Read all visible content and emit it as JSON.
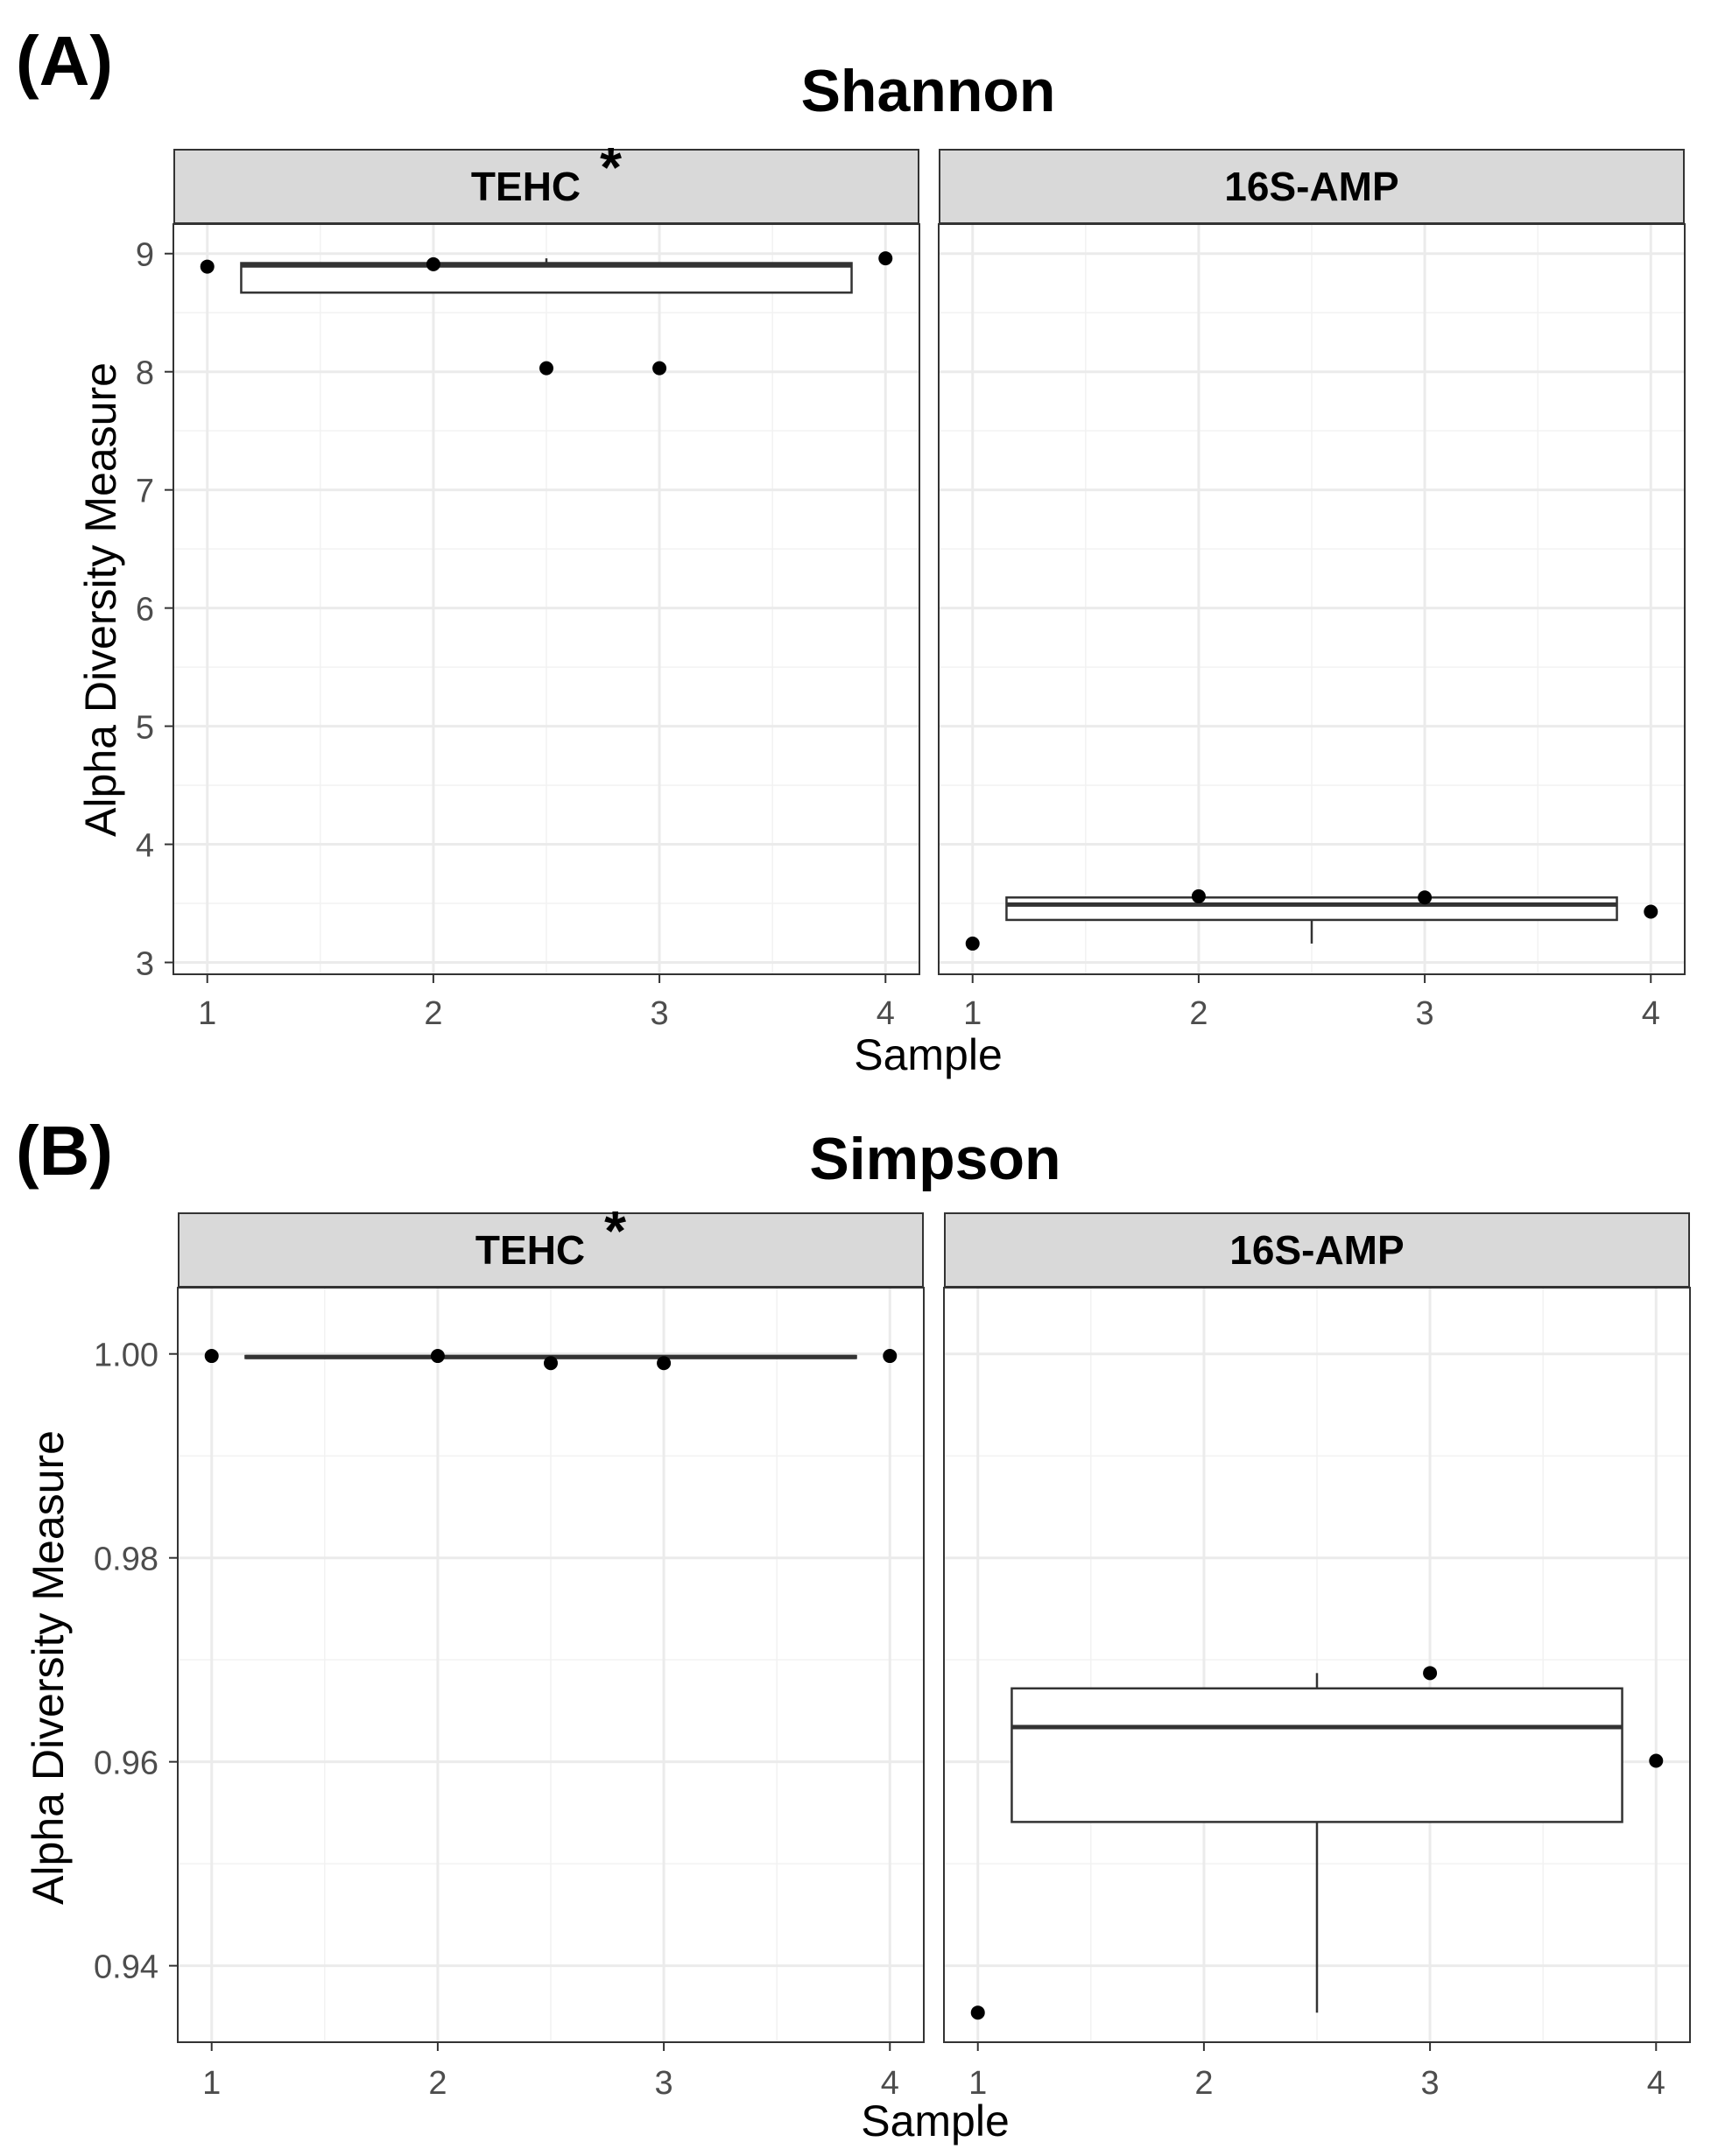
{
  "figure": {
    "panel_labels": [
      "(A)",
      "(B)"
    ]
  },
  "chart_data": [
    {
      "type": "box",
      "panel_label": "(A)",
      "title": "Shannon",
      "xlabel": "Sample",
      "ylabel": "Alpha Diversity Measure",
      "ylim": [
        2.9,
        9.25
      ],
      "yticks": [
        3,
        4,
        5,
        6,
        7,
        8,
        9
      ],
      "ytick_labels": [
        "3",
        "4",
        "5",
        "6",
        "7",
        "8",
        "9"
      ],
      "xlim": [
        0.85,
        4.15
      ],
      "xticks": [
        1,
        2,
        3,
        4
      ],
      "xtick_labels": [
        "1",
        "2",
        "3",
        "4"
      ],
      "grid": true,
      "facets": [
        {
          "label": "TEHC",
          "star": "*",
          "points": [
            {
              "x": 1,
              "y": 8.89
            },
            {
              "x": 2,
              "y": 8.91
            },
            {
              "x": 2.5,
              "y": 8.03
            },
            {
              "x": 3,
              "y": 8.03
            },
            {
              "x": 4,
              "y": 8.96
            }
          ],
          "box": {
            "x": 2.5,
            "q1": 8.67,
            "median": 8.9,
            "q3": 8.92,
            "whisker_low": 8.67,
            "whisker_high": 8.96,
            "x_left": 1.15,
            "x_right": 3.85
          }
        },
        {
          "label": "16S-AMP",
          "star": "",
          "points": [
            {
              "x": 1,
              "y": 3.16
            },
            {
              "x": 2,
              "y": 3.56
            },
            {
              "x": 3,
              "y": 3.55
            },
            {
              "x": 4,
              "y": 3.43
            }
          ],
          "box": {
            "x": 2.5,
            "q1": 3.36,
            "median": 3.49,
            "q3": 3.55,
            "whisker_low": 3.16,
            "whisker_high": 3.55,
            "x_left": 1.15,
            "x_right": 3.85
          }
        }
      ]
    },
    {
      "type": "box",
      "panel_label": "(B)",
      "title": "Simpson",
      "xlabel": "Sample",
      "ylabel": "Alpha Diversity Measure",
      "ylim": [
        0.9325,
        1.0065
      ],
      "yticks": [
        0.94,
        0.96,
        0.98,
        1.0
      ],
      "ytick_labels": [
        "0.94",
        "0.96",
        "0.98",
        "1.00"
      ],
      "xlim": [
        0.85,
        4.15
      ],
      "xticks": [
        1,
        2,
        3,
        4
      ],
      "xtick_labels": [
        "1",
        "2",
        "3",
        "4"
      ],
      "grid": true,
      "facets": [
        {
          "label": "TEHC",
          "star": "*",
          "points": [
            {
              "x": 1,
              "y": 0.9998
            },
            {
              "x": 2,
              "y": 0.9998
            },
            {
              "x": 2.5,
              "y": 0.9991
            },
            {
              "x": 3,
              "y": 0.9991
            },
            {
              "x": 4,
              "y": 0.9998
            }
          ],
          "box": {
            "x": 2.5,
            "q1": 0.9996,
            "median": 0.9997,
            "q3": 0.9998,
            "whisker_low": 0.9996,
            "whisker_high": 0.9998,
            "x_left": 1.15,
            "x_right": 3.85
          }
        },
        {
          "label": "16S-AMP",
          "star": "",
          "points": [
            {
              "x": 1,
              "y": 0.9354
            },
            {
              "x": 3,
              "y": 0.9687
            },
            {
              "x": 4,
              "y": 0.9601
            }
          ],
          "box": {
            "x": 2.5,
            "q1": 0.9541,
            "median": 0.9634,
            "q3": 0.9672,
            "whisker_low": 0.9354,
            "whisker_high": 0.9687,
            "x_left": 1.15,
            "x_right": 3.85
          }
        }
      ]
    }
  ]
}
